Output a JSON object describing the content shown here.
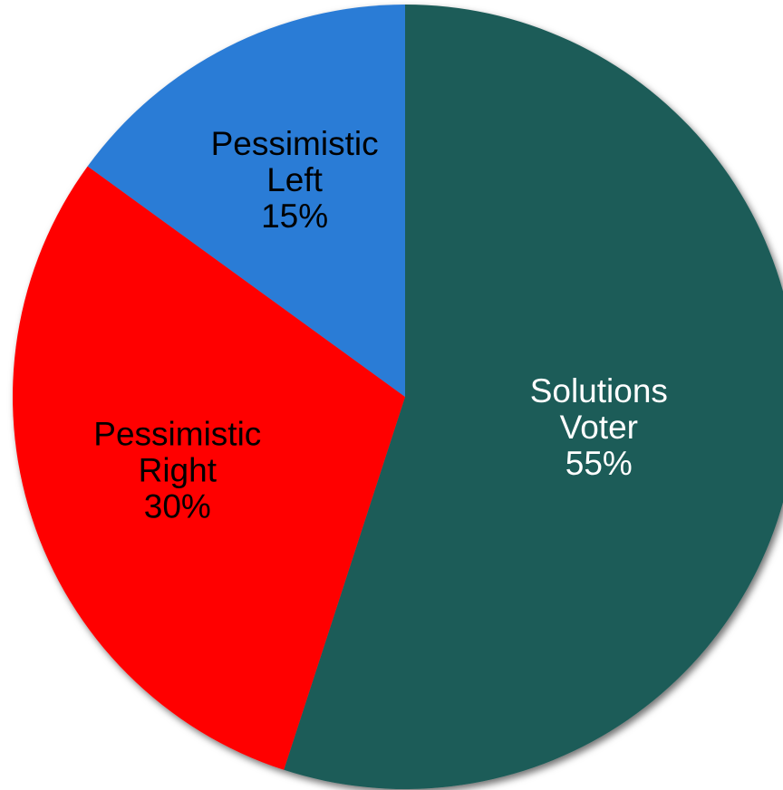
{
  "chart_data": {
    "type": "pie",
    "title": "",
    "slices": [
      {
        "label_lines": [
          "Solutions",
          "Voter"
        ],
        "value": 55,
        "value_text": "55%",
        "color": "#1f5c58",
        "text_color": "#ffffff"
      },
      {
        "label_lines": [
          "Pessimistic",
          "Right"
        ],
        "value": 30,
        "value_text": "30%",
        "color": "#ff0000",
        "text_color": "#000000"
      },
      {
        "label_lines": [
          "Pessimistic",
          "Left"
        ],
        "value": 15,
        "value_text": "15%",
        "color": "#2b7bd6",
        "text_color": "#000000"
      }
    ],
    "start_angle_deg": 0,
    "direction": "clockwise",
    "legend": "none"
  }
}
